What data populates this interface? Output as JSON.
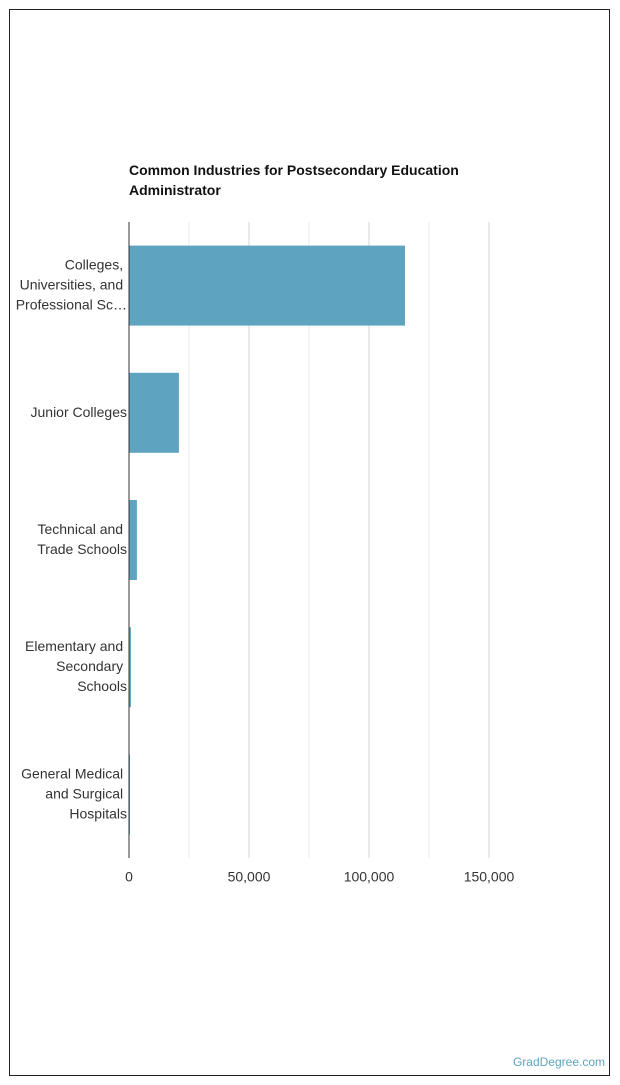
{
  "chart_data": {
    "type": "barh",
    "title": "Common Industries for Postsecondary Education Administrator",
    "categories": [
      "Colleges, Universities, and Professional Sc…",
      "Junior Colleges",
      "Technical and Trade Schools",
      "Elementary and Secondary Schools",
      "General Medical and Surgical Hospitals"
    ],
    "values": [
      115000,
      20800,
      3300,
      800,
      400
    ],
    "color": "#5ea4c0",
    "xlim": [
      0,
      150000
    ],
    "xticks": [
      0,
      {
        "value": 50000,
        "label": "50,000"
      },
      {
        "value": 100000,
        "label": "100,000"
      },
      {
        "value": 150000,
        "label": "150,000"
      }
    ],
    "minor_xticks": [
      25000,
      75000,
      125000
    ],
    "grid": true,
    "source": "GradDegree.com"
  }
}
